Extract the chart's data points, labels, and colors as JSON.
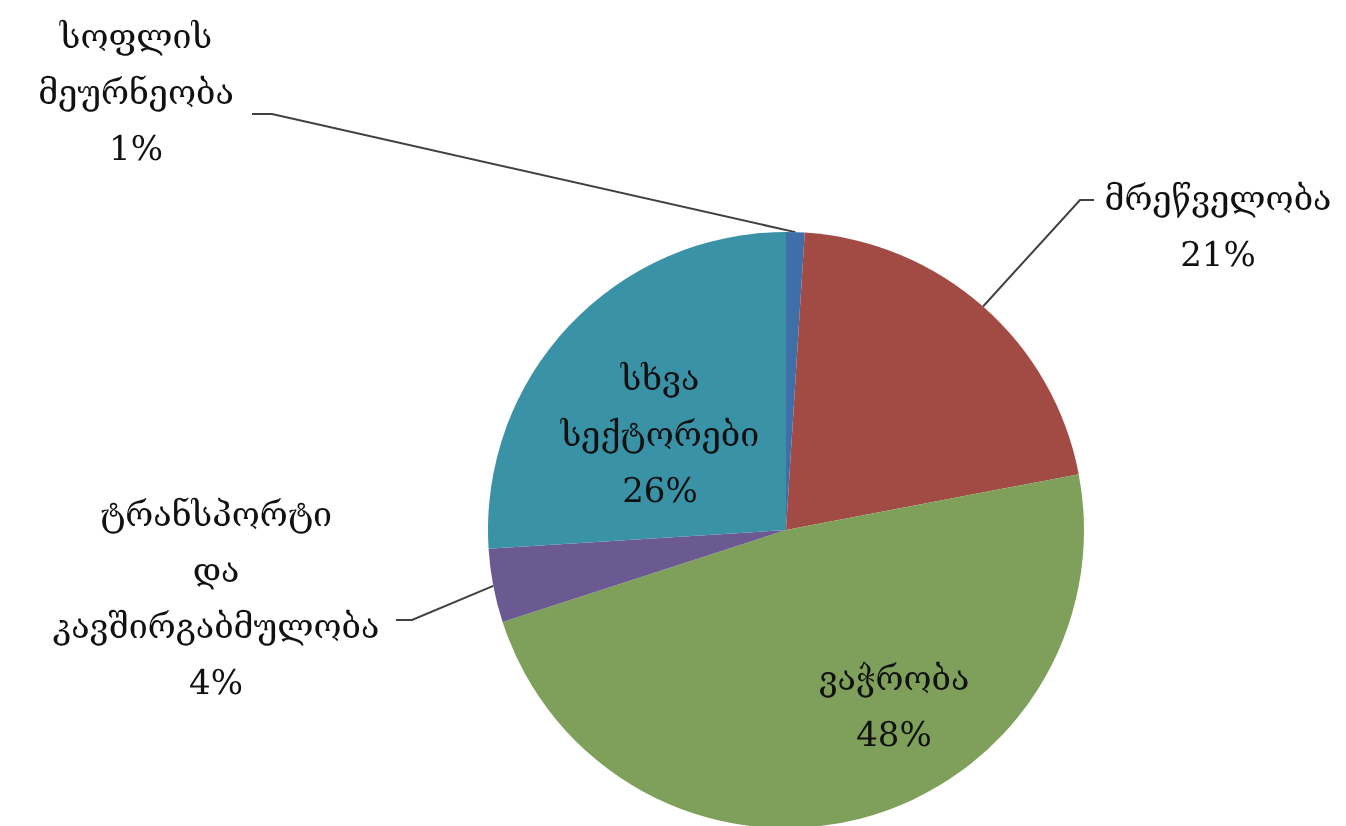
{
  "chart_data": {
    "type": "pie",
    "categories": [
      "სოფლის მეურნეობა",
      "მრეწველობა",
      "ვაჭრობა",
      "ტრანსპორტი და კავშირგაბმულობა",
      "სხვა სექტორები"
    ],
    "values": [
      1,
      21,
      48,
      4,
      26
    ],
    "colors": [
      "#3f6fa8",
      "#a24a44",
      "#7fa05a",
      "#6a5a91",
      "#3a92a6"
    ],
    "value_labels": [
      "1%",
      "21%",
      "48%",
      "4%",
      "26%"
    ]
  }
}
